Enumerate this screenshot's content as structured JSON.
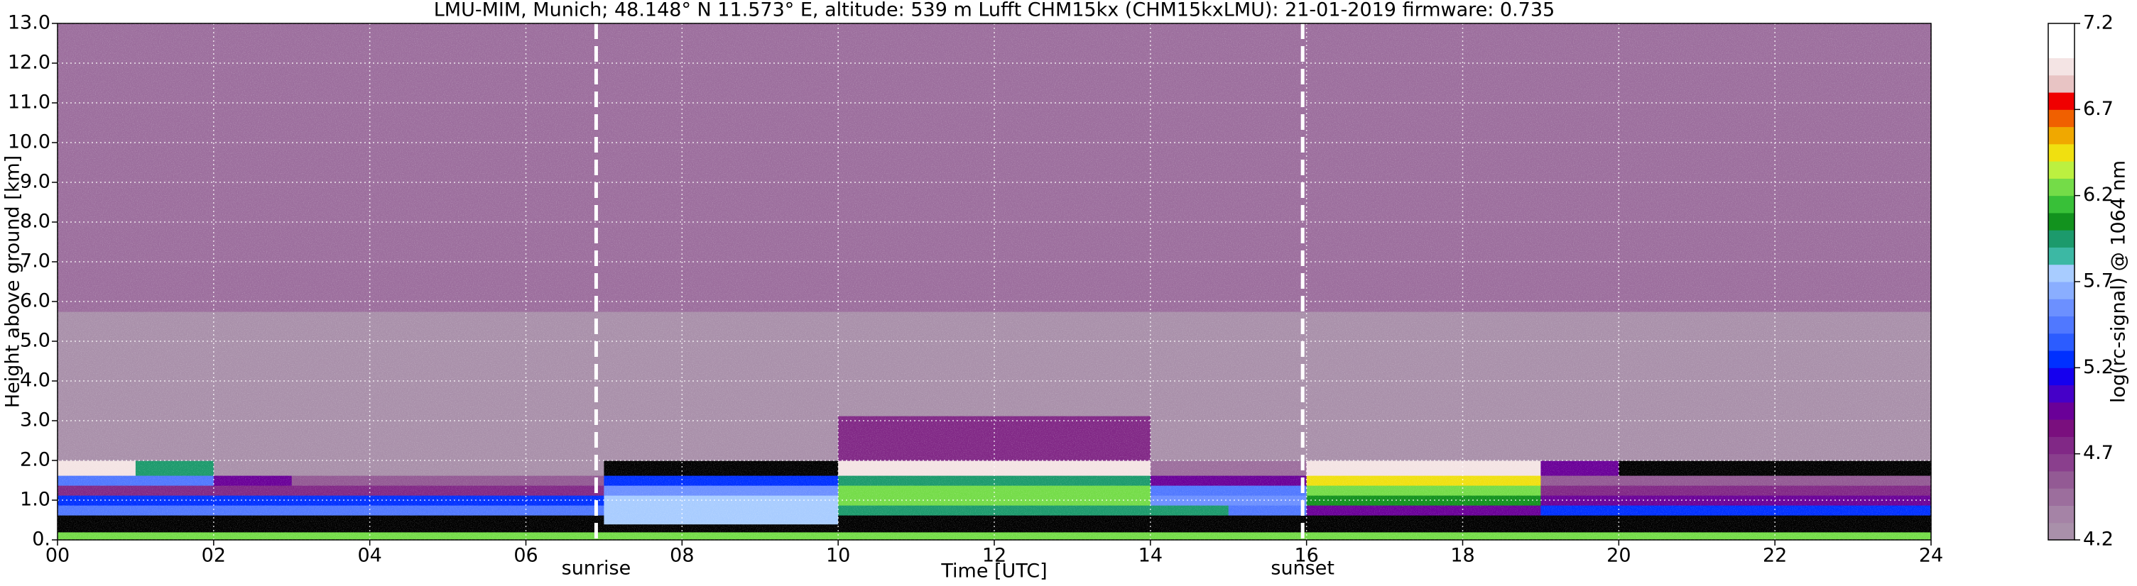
{
  "chart_data": {
    "type": "heatmap",
    "title": "LMU-MIM, Munich; 48.148° N 11.573° E, altitude: 539 m    Lufft CHM15kx (CHM15kxLMU): 21-01-2019    firmware: 0.735",
    "xlabel": "Time [UTC]",
    "ylabel": "Height above ground [km]",
    "colorbar_label": "log(rc-signal) @ 1064 nm",
    "xlim": [
      0,
      24
    ],
    "xticks": [
      {
        "value": 0,
        "label": "00"
      },
      {
        "value": 2,
        "label": "02"
      },
      {
        "value": 4,
        "label": "04"
      },
      {
        "value": 6,
        "label": "06"
      },
      {
        "value": 8,
        "label": "08"
      },
      {
        "value": 10,
        "label": "10"
      },
      {
        "value": 12,
        "label": "12"
      },
      {
        "value": 14,
        "label": "14"
      },
      {
        "value": 16,
        "label": "16"
      },
      {
        "value": 18,
        "label": "18"
      },
      {
        "value": 20,
        "label": "20"
      },
      {
        "value": 22,
        "label": "22"
      },
      {
        "value": 24,
        "label": "24"
      }
    ],
    "ylim": [
      0,
      13
    ],
    "yticks": [
      {
        "value": 0,
        "label": "0."
      },
      {
        "value": 1,
        "label": "1.0"
      },
      {
        "value": 2,
        "label": "2.0"
      },
      {
        "value": 3,
        "label": "3.0"
      },
      {
        "value": 4,
        "label": "4.0"
      },
      {
        "value": 5,
        "label": "5.0"
      },
      {
        "value": 6,
        "label": "6.0"
      },
      {
        "value": 7,
        "label": "7.0"
      },
      {
        "value": 8,
        "label": "8.0"
      },
      {
        "value": 9,
        "label": "9.0"
      },
      {
        "value": 10,
        "label": "10.0"
      },
      {
        "value": 11,
        "label": "11.0"
      },
      {
        "value": 12,
        "label": "12.0"
      },
      {
        "value": 13,
        "label": "13.0"
      }
    ],
    "grid": true,
    "clim": [
      4.2,
      7.2
    ],
    "cticks": [
      4.2,
      4.7,
      5.2,
      5.7,
      6.2,
      6.7,
      7.2
    ],
    "under_color": "#000000",
    "colormap": [
      "#a990aa",
      "#a583a6",
      "#9c6e9d",
      "#935a94",
      "#8a3f8d",
      "#812886",
      "#7a0f7e",
      "#6a0098",
      "#4500c8",
      "#1500ee",
      "#0030ff",
      "#2c5cff",
      "#5078ff",
      "#6c90ff",
      "#8aaeff",
      "#a8ccff",
      "#3cb8a4",
      "#1c9a6c",
      "#12921e",
      "#38c038",
      "#74dc48",
      "#bcf040",
      "#f0e010",
      "#f0a800",
      "#f06000",
      "#f00000",
      "#e8c4c4",
      "#f4e4e4",
      "#ffffff",
      "#ffffff"
    ],
    "annotations": [
      {
        "text": "sunrise",
        "x": 6.9
      },
      {
        "text": "sunset",
        "x": 15.95
      }
    ],
    "x": [
      0.5,
      1.5,
      2.5,
      3.5,
      4.5,
      5.5,
      6.5,
      7.5,
      8.5,
      9.5,
      10.5,
      11.5,
      12.5,
      13.5,
      14.5,
      15.5,
      16.5,
      17.5,
      18.5,
      19.5,
      20.5,
      21.5,
      22.5,
      23.5
    ],
    "y": [
      0.1,
      0.3,
      0.5,
      0.75,
      1.0,
      1.25,
      1.5,
      1.75,
      2.25,
      4,
      7.5,
      11.5
    ],
    "z": [
      [
        6.3,
        6.3,
        6.3,
        6.3,
        6.3,
        6.3,
        6.3,
        6.3,
        6.3,
        6.3,
        6.3,
        6.3,
        6.3,
        6.3,
        6.3,
        6.3,
        6.3,
        6.3,
        6.3,
        6.3,
        6.3,
        6.3,
        6.3,
        6.3
      ],
      [
        4.0,
        4.0,
        4.0,
        4.0,
        4.0,
        4.0,
        4.0,
        4.0,
        4.0,
        4.0,
        4.0,
        4.0,
        4.0,
        4.0,
        4.0,
        4.0,
        4.0,
        4.0,
        4.0,
        4.0,
        4.0,
        4.0,
        4.0,
        4.0
      ],
      [
        4.0,
        4.0,
        4.0,
        4.0,
        4.0,
        4.0,
        4.0,
        5.7,
        5.7,
        5.7,
        4.0,
        4.0,
        4.0,
        4.0,
        4.0,
        4.0,
        4.0,
        4.0,
        4.0,
        4.0,
        4.0,
        4.0,
        4.0,
        4.0
      ],
      [
        5.4,
        5.4,
        5.4,
        5.4,
        5.4,
        5.4,
        5.4,
        5.7,
        5.7,
        5.7,
        6.0,
        6.0,
        6.0,
        6.0,
        6.0,
        5.4,
        4.9,
        4.9,
        4.9,
        5.2,
        5.2,
        5.2,
        5.2,
        5.2
      ],
      [
        5.3,
        5.3,
        5.3,
        5.3,
        5.3,
        5.3,
        5.3,
        5.7,
        5.7,
        5.7,
        6.3,
        6.3,
        6.3,
        6.3,
        5.6,
        5.6,
        6.1,
        6.1,
        6.1,
        5.0,
        5.0,
        5.0,
        5.0,
        5.0
      ],
      [
        4.8,
        4.8,
        4.8,
        4.8,
        4.8,
        4.8,
        4.8,
        5.6,
        5.6,
        5.6,
        6.3,
        6.3,
        6.3,
        6.3,
        5.4,
        5.4,
        6.2,
        6.2,
        6.2,
        4.8,
        4.8,
        4.8,
        4.8,
        4.8
      ],
      [
        5.4,
        5.4,
        5.0,
        4.6,
        4.6,
        4.6,
        4.6,
        5.3,
        5.3,
        5.3,
        6.0,
        6.0,
        6.0,
        6.0,
        5.0,
        5.0,
        6.5,
        6.5,
        6.5,
        4.6,
        4.6,
        4.6,
        4.6,
        4.6
      ],
      [
        6.9,
        6.0,
        4.2,
        4.2,
        4.2,
        4.2,
        4.2,
        4.0,
        4.0,
        4.0,
        6.9,
        6.9,
        6.9,
        6.9,
        4.5,
        4.5,
        6.9,
        6.9,
        6.9,
        5.0,
        4.0,
        4.0,
        4.0,
        4.0
      ],
      [
        4.2,
        4.2,
        4.2,
        4.2,
        4.2,
        4.2,
        4.2,
        4.2,
        4.2,
        4.2,
        4.8,
        4.8,
        4.8,
        4.8,
        4.2,
        4.2,
        4.2,
        4.2,
        4.2,
        4.2,
        4.2,
        4.2,
        4.2,
        4.2
      ],
      [
        4.3,
        4.3,
        4.3,
        4.3,
        4.3,
        4.3,
        4.3,
        4.3,
        4.3,
        4.3,
        4.3,
        4.3,
        4.3,
        4.3,
        4.3,
        4.3,
        4.3,
        4.3,
        4.3,
        4.3,
        4.3,
        4.3,
        4.3,
        4.3
      ],
      [
        4.5,
        4.5,
        4.5,
        4.5,
        4.5,
        4.5,
        4.5,
        4.5,
        4.5,
        4.5,
        4.5,
        4.5,
        4.5,
        4.5,
        4.5,
        4.5,
        4.5,
        4.5,
        4.5,
        4.5,
        4.5,
        4.5,
        4.5,
        4.5
      ],
      [
        4.5,
        4.5,
        4.5,
        4.5,
        4.5,
        4.5,
        4.5,
        4.5,
        4.5,
        4.5,
        4.5,
        4.5,
        4.5,
        4.5,
        4.5,
        4.5,
        4.5,
        4.5,
        4.5,
        4.5,
        4.5,
        4.5,
        4.5,
        4.5
      ]
    ]
  }
}
